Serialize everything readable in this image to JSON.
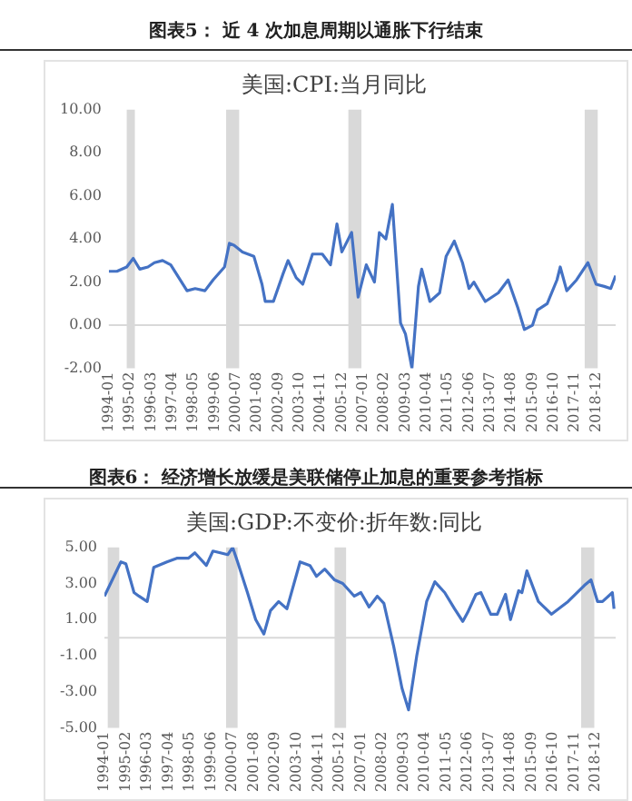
{
  "chart_data": [
    {
      "type": "line",
      "title": "图表5： 近 4 次加息周期以通胀下行结束",
      "subtitle": "美国:CPI:当月同比",
      "color": "#4472c4",
      "legend": false,
      "marker": "none",
      "x": [
        "1994-01",
        "1994-06",
        "1994-12",
        "1995-04",
        "1995-08",
        "1996-01",
        "1996-05",
        "1996-10",
        "1997-03",
        "1997-08",
        "1998-01",
        "1998-06",
        "1998-12",
        "1999-05",
        "1999-12",
        "2000-03",
        "2000-06",
        "2000-11",
        "2001-06",
        "2001-11",
        "2002-01",
        "2002-06",
        "2002-12",
        "2003-03",
        "2003-08",
        "2003-12",
        "2004-06",
        "2004-12",
        "2005-05",
        "2005-09",
        "2005-12",
        "2006-06",
        "2006-10",
        "2007-03",
        "2007-08",
        "2007-11",
        "2008-03",
        "2008-07",
        "2008-12",
        "2009-03",
        "2009-07",
        "2009-11",
        "2010-01",
        "2010-06",
        "2010-12",
        "2011-04",
        "2011-09",
        "2012-02",
        "2012-06",
        "2012-09",
        "2013-04",
        "2013-12",
        "2014-06",
        "2014-12",
        "2015-04",
        "2015-09",
        "2015-12",
        "2016-06",
        "2016-12",
        "2017-02",
        "2017-06",
        "2017-12",
        "2018-07",
        "2018-12",
        "2019-05",
        "2019-09",
        "2019-12"
      ],
      "values": [
        2.5,
        2.5,
        2.7,
        3.1,
        2.6,
        2.7,
        2.9,
        3.0,
        2.8,
        2.2,
        1.6,
        1.7,
        1.6,
        2.1,
        2.7,
        3.8,
        3.7,
        3.4,
        3.2,
        1.9,
        1.1,
        1.1,
        2.4,
        3.0,
        2.2,
        1.9,
        3.3,
        3.3,
        2.8,
        4.7,
        3.4,
        4.3,
        1.3,
        2.8,
        2.0,
        4.3,
        4.0,
        5.6,
        0.1,
        -0.4,
        -2.0,
        1.8,
        2.6,
        1.1,
        1.5,
        3.2,
        3.9,
        2.9,
        1.7,
        2.0,
        1.1,
        1.5,
        2.1,
        0.8,
        -0.2,
        0.0,
        0.7,
        1.0,
        2.1,
        2.7,
        1.6,
        2.1,
        2.9,
        1.9,
        1.8,
        1.7,
        2.3
      ],
      "xlim": [
        "1994-01",
        "2019-12"
      ],
      "xticks": [
        "1994-01",
        "1995-02",
        "1996-03",
        "1997-04",
        "1998-05",
        "1999-06",
        "2000-07",
        "2001-08",
        "2002-09",
        "2003-10",
        "2004-11",
        "2005-12",
        "2007-01",
        "2008-02",
        "2009-03",
        "2010-04",
        "2011-05",
        "2012-06",
        "2013-07",
        "2014-08",
        "2015-09",
        "2016-10",
        "2017-11",
        "2018-12"
      ],
      "ylim": [
        -2,
        10
      ],
      "yticks": [
        {
          "value": -2,
          "label": "-2.00"
        },
        {
          "value": 0,
          "label": "0.00"
        },
        {
          "value": 2,
          "label": "2.00"
        },
        {
          "value": 4,
          "label": "4.00"
        },
        {
          "value": 6,
          "label": "6.00"
        },
        {
          "value": 8,
          "label": "8.00"
        },
        {
          "value": 10,
          "label": "10.00"
        }
      ],
      "ref_lines": [
        {
          "axis": "y",
          "value": 0,
          "color": "#d9d9d9"
        }
      ],
      "bands": [
        {
          "axis": "x",
          "from": "1994-12",
          "to": "1995-05",
          "color": "#d9d9d9"
        },
        {
          "axis": "x",
          "from": "2000-01",
          "to": "2000-09",
          "color": "#d9d9d9"
        },
        {
          "axis": "x",
          "from": "2006-04",
          "to": "2006-12",
          "color": "#d9d9d9"
        },
        {
          "axis": "x",
          "from": "2018-05",
          "to": "2019-01",
          "color": "#d9d9d9"
        }
      ]
    },
    {
      "type": "line",
      "title": "图表6： 经济增长放缓是美联储停止加息的重要参考指标",
      "subtitle": "美国:GDP:不变价:折年数:同比",
      "color": "#4472c4",
      "legend": false,
      "marker": "none",
      "x": [
        "1994-01",
        "1994-11",
        "1995-02",
        "1995-07",
        "1995-10",
        "1996-03",
        "1996-07",
        "1997-03",
        "1997-09",
        "1998-04",
        "1998-08",
        "1999-03",
        "1999-07",
        "2000-04",
        "2000-07",
        "2000-10",
        "2001-04",
        "2001-09",
        "2002-02",
        "2002-06",
        "2002-11",
        "2003-04",
        "2003-12",
        "2004-06",
        "2004-10",
        "2005-03",
        "2005-09",
        "2006-02",
        "2006-09",
        "2007-01",
        "2007-06",
        "2007-11",
        "2008-03",
        "2008-09",
        "2009-02",
        "2009-06",
        "2009-11",
        "2010-05",
        "2010-10",
        "2011-04",
        "2011-10",
        "2012-03",
        "2012-06",
        "2012-11",
        "2013-02",
        "2013-08",
        "2013-12",
        "2014-05",
        "2014-08",
        "2015-01",
        "2015-03",
        "2015-06",
        "2016-01",
        "2016-09",
        "2017-07",
        "2018-05",
        "2018-09",
        "2019-01",
        "2019-04",
        "2019-10",
        "2019-11"
      ],
      "values": [
        2.3,
        4.2,
        4.1,
        2.5,
        2.3,
        2.0,
        3.9,
        4.2,
        4.4,
        4.4,
        4.7,
        4.0,
        4.8,
        4.6,
        5.0,
        4.2,
        2.5,
        1.0,
        0.2,
        1.5,
        2.0,
        1.6,
        4.2,
        4.0,
        3.4,
        3.8,
        3.2,
        3.0,
        2.3,
        2.5,
        1.7,
        2.3,
        1.9,
        -0.5,
        -2.8,
        -4.0,
        -1.0,
        2.0,
        3.1,
        2.5,
        1.6,
        0.9,
        1.4,
        2.4,
        2.5,
        1.3,
        1.3,
        2.4,
        1.0,
        2.6,
        2.5,
        3.7,
        2.0,
        1.3,
        2.0,
        2.9,
        3.2,
        2.0,
        2.0,
        2.5,
        1.6
      ],
      "xlim": [
        "1994-01",
        "2019-12"
      ],
      "xticks": [
        "1994-01",
        "1995-02",
        "1996-03",
        "1997-04",
        "1998-05",
        "1999-06",
        "2000-07",
        "2001-08",
        "2002-09",
        "2003-10",
        "2004-11",
        "2005-12",
        "2007-01",
        "2008-02",
        "2009-03",
        "2010-04",
        "2011-05",
        "2012-06",
        "2013-07",
        "2014-08",
        "2015-09",
        "2016-10",
        "2017-11",
        "2018-12"
      ],
      "ylim": [
        -5,
        5
      ],
      "yticks": [
        {
          "value": -5,
          "label": "-5.00"
        },
        {
          "value": -3,
          "label": "-3.00"
        },
        {
          "value": -1,
          "label": "-1.00"
        },
        {
          "value": 1,
          "label": "1.00"
        },
        {
          "value": 3,
          "label": "3.00"
        },
        {
          "value": 5,
          "label": "5.00"
        }
      ],
      "ref_lines": [
        {
          "axis": "y",
          "value": 0,
          "color": "#d9d9d9"
        }
      ],
      "bands": [
        {
          "axis": "x",
          "from": "1994-03",
          "to": "1994-10",
          "color": "#d9d9d9"
        },
        {
          "axis": "x",
          "from": "2000-03",
          "to": "2000-10",
          "color": "#d9d9d9"
        },
        {
          "axis": "x",
          "from": "2005-09",
          "to": "2006-04",
          "color": "#d9d9d9"
        },
        {
          "axis": "x",
          "from": "2018-03",
          "to": "2018-11",
          "color": "#d9d9d9"
        }
      ]
    }
  ]
}
